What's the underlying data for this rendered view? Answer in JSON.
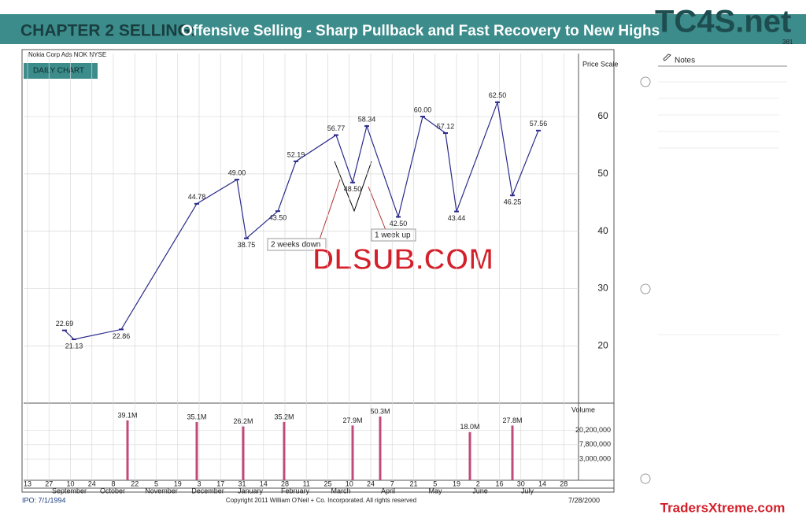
{
  "header": {
    "chapter": "CHAPTER 2 SELLING:",
    "title": "Offensive Selling - Sharp Pullback and Fast Recovery to New Highs",
    "logo": "TC4S.net",
    "page_number": "381"
  },
  "notes": {
    "title": "Notes"
  },
  "watermarks": [
    "DLSUB.COM",
    "TradersXtreme.com"
  ],
  "chart_data": {
    "type": "stock",
    "ticker": "Nokia Corp Ads  NOK  NYSE",
    "label": "DAILY CHART",
    "y_axis_label": "Price Scale",
    "ylim": [
      10,
      71
    ],
    "yticks": [
      20,
      30,
      40,
      50,
      60
    ],
    "grid": true,
    "color": "#2a2a8a",
    "price_annotations": [
      {
        "value": 22.69,
        "label": "22.69"
      },
      {
        "value": 21.13,
        "label": "21.13"
      },
      {
        "value": 22.86,
        "label": "22.86"
      },
      {
        "value": 44.78,
        "label": "44.78"
      },
      {
        "value": 49,
        "label": "49.00"
      },
      {
        "value": 38.75,
        "label": "38.75"
      },
      {
        "value": 43.5,
        "label": "43.50"
      },
      {
        "value": 52.19,
        "label": "52.19"
      },
      {
        "value": 56.77,
        "label": "56.77"
      },
      {
        "value": 48.5,
        "label": "48.50"
      },
      {
        "value": 58.34,
        "label": "58.34"
      },
      {
        "value": 42.5,
        "label": "42.50"
      },
      {
        "value": 60,
        "label": "60.00"
      },
      {
        "value": 57.12,
        "label": "57.12"
      },
      {
        "value": 43.44,
        "label": "43.44"
      },
      {
        "value": 62.5,
        "label": "62.50"
      },
      {
        "value": 46.25,
        "label": "46.25"
      },
      {
        "value": 57.56,
        "label": "57.56"
      }
    ],
    "callouts": [
      "2 weeks down",
      "1 week up"
    ],
    "date_labels": [
      "13",
      "27",
      "10",
      "24",
      "8",
      "22",
      "5",
      "19",
      "3",
      "17",
      "31",
      "14",
      "28",
      "11",
      "25",
      "10",
      "24",
      "7",
      "21",
      "5",
      "19",
      "2",
      "16",
      "30",
      "14",
      "28"
    ],
    "months": [
      "September",
      "October",
      "November",
      "December",
      "January",
      "February",
      "March",
      "April",
      "May",
      "June",
      "July"
    ],
    "volume": {
      "y_axis_label": "Volume",
      "log": true,
      "ylim": [
        735000,
        123000000
      ],
      "yticks": [
        {
          "value": 3000000,
          "label": "3,000,000"
        },
        {
          "value": 7800000,
          "label": "7,800,000"
        },
        {
          "value": 20200000,
          "label": "20,200,000"
        }
      ],
      "color": "#c04a7a",
      "annotations": [
        {
          "value": 39100000,
          "label": "39.1M"
        },
        {
          "value": 35100000,
          "label": "35.1M"
        },
        {
          "value": 26200000,
          "label": "26.2M"
        },
        {
          "value": 35200000,
          "label": "35.2M"
        },
        {
          "value": 27900000,
          "label": "27.9M"
        },
        {
          "value": 50300000,
          "label": "50.3M"
        },
        {
          "value": 18000000,
          "label": "18.0M"
        },
        {
          "value": 27800000,
          "label": "27.8M"
        }
      ]
    },
    "footer": {
      "ipo": "IPO: 7/1/1994",
      "copyright": "Copyright 2011 William O'Neil + Co. Incorporated. All rights reserved",
      "date": "7/28/2000"
    }
  }
}
